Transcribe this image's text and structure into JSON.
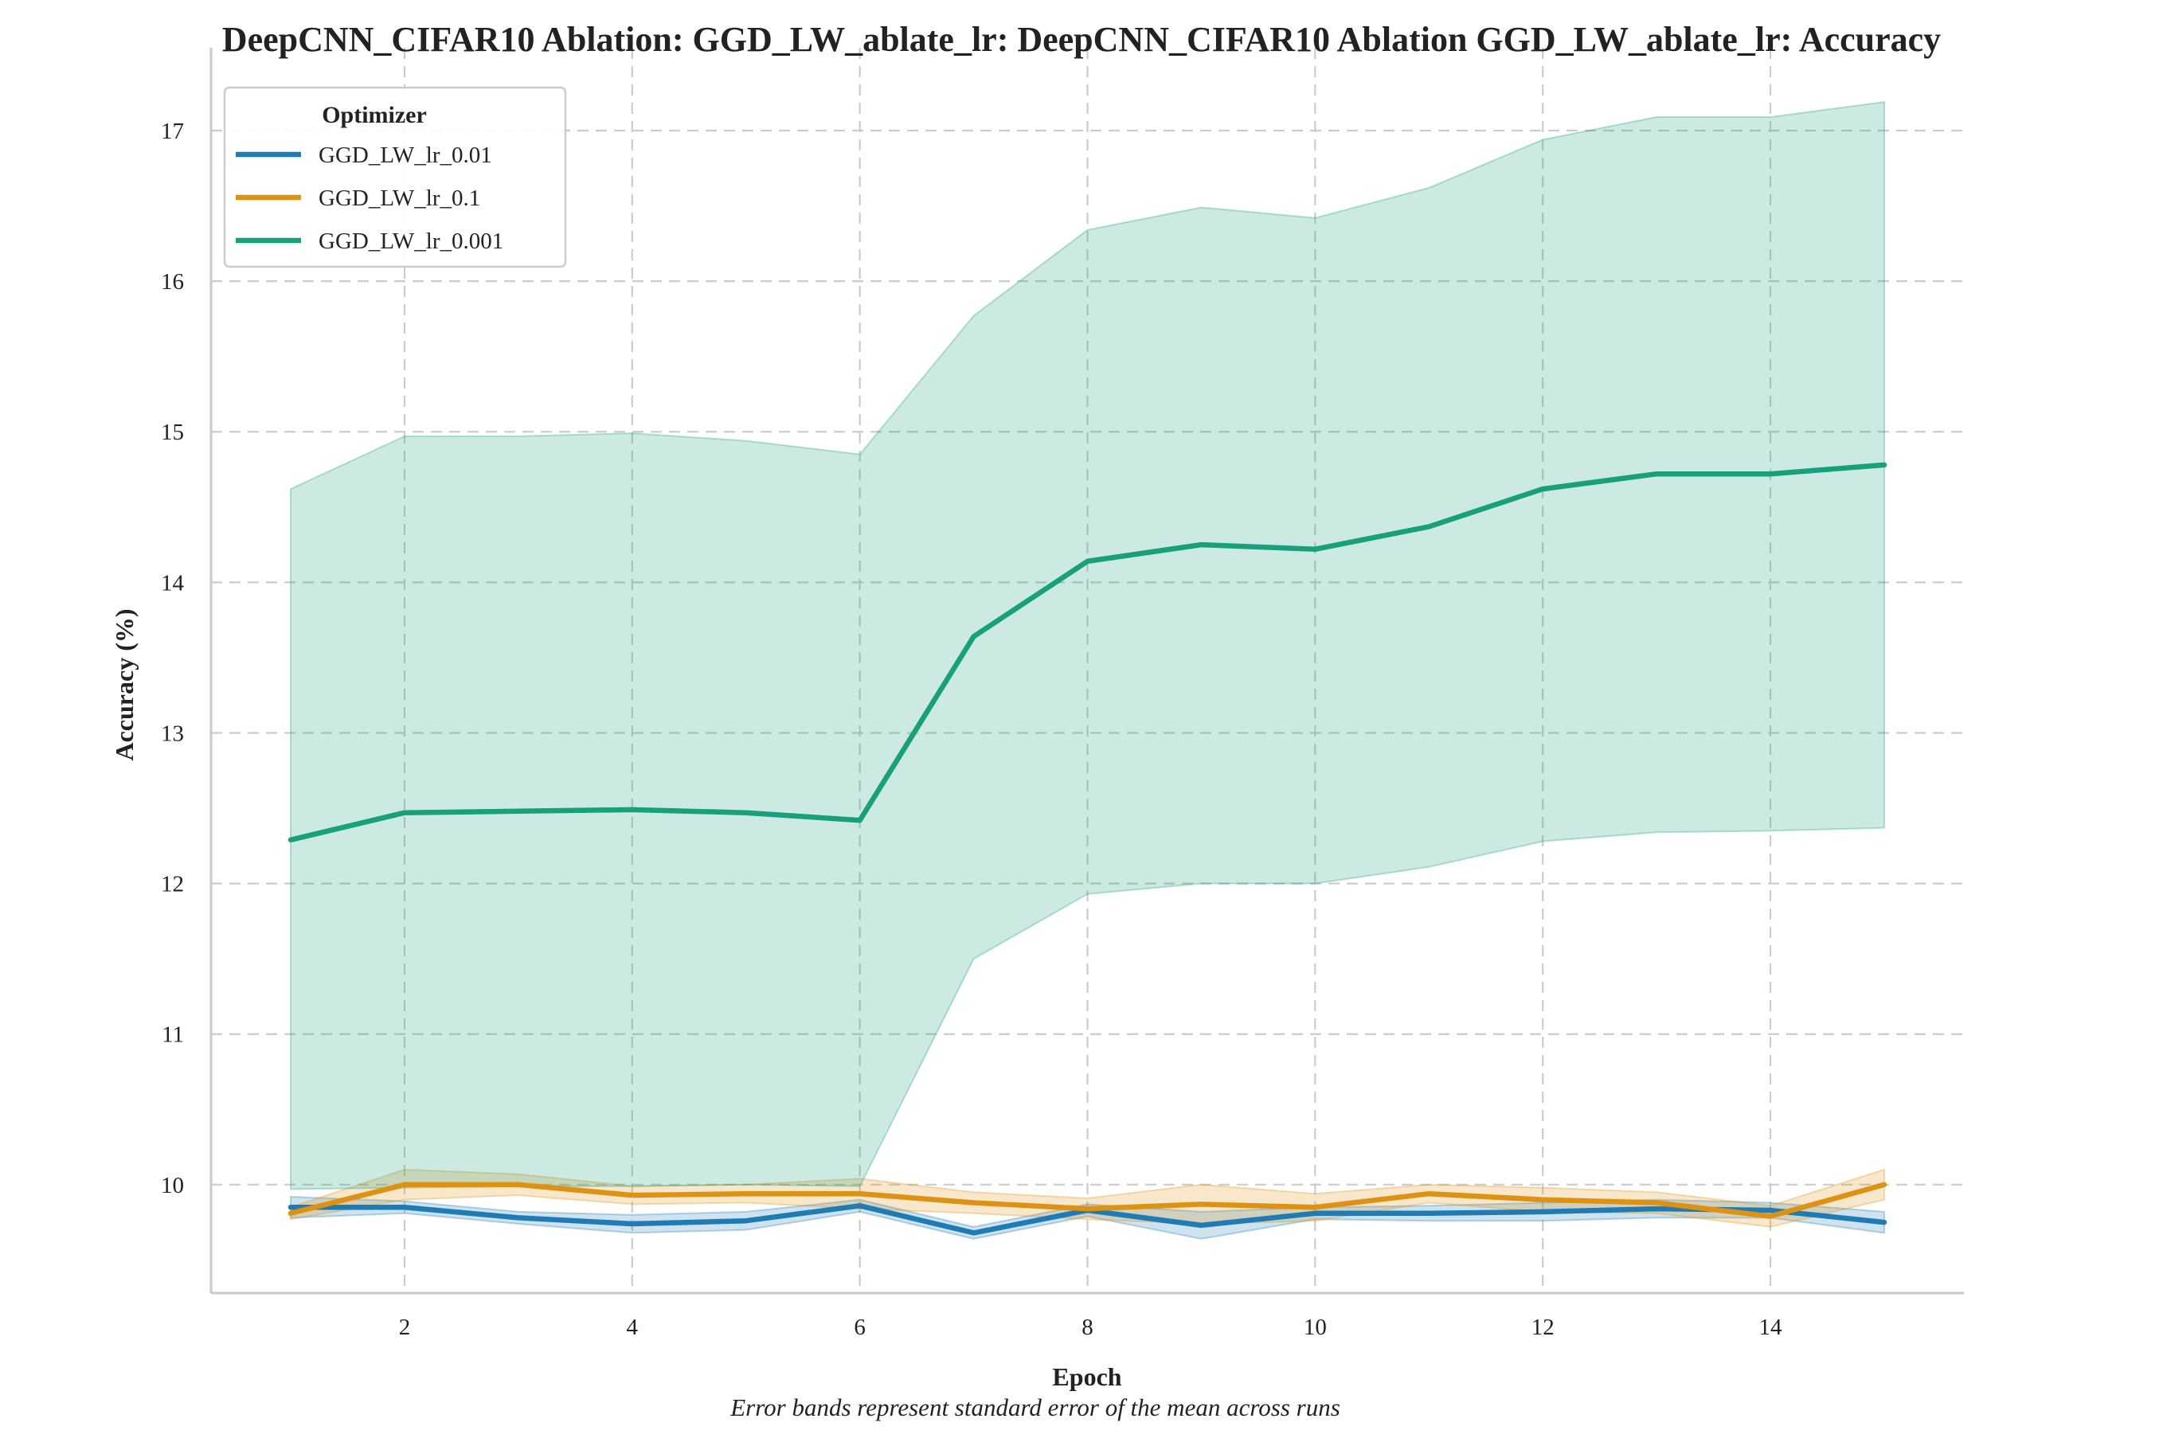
{
  "chart_data": {
    "type": "line",
    "title": "DeepCNN_CIFAR10 Ablation: GGD_LW_ablate_lr: DeepCNN_CIFAR10 Ablation GGD_LW_ablate_lr: Accuracy",
    "xlabel": "Epoch",
    "ylabel": "Accuracy (%)",
    "caption": "Error bands represent standard error of the mean across runs",
    "legend_title": "Optimizer",
    "legend_position": "top-left",
    "grid": true,
    "xlim": [
      0.3,
      15.7
    ],
    "ylim": [
      9.28,
      17.55
    ],
    "xticks": [
      2,
      4,
      6,
      8,
      10,
      12,
      14
    ],
    "yticks": [
      10,
      11,
      12,
      13,
      14,
      15,
      16,
      17
    ],
    "x": [
      1,
      2,
      3,
      4,
      5,
      6,
      7,
      8,
      9,
      10,
      11,
      12,
      13,
      14,
      15
    ],
    "series": [
      {
        "name": "GGD_LW_lr_0.01",
        "color": "#1f7bb4",
        "values": [
          9.85,
          9.85,
          9.78,
          9.74,
          9.76,
          9.86,
          9.68,
          9.83,
          9.73,
          9.81,
          9.81,
          9.82,
          9.84,
          9.83,
          9.75
        ],
        "lower": [
          9.78,
          9.81,
          9.74,
          9.68,
          9.7,
          9.82,
          9.64,
          9.79,
          9.64,
          9.77,
          9.76,
          9.76,
          9.78,
          9.78,
          9.68
        ],
        "upper": [
          9.92,
          9.89,
          9.82,
          9.8,
          9.82,
          9.9,
          9.72,
          9.87,
          9.82,
          9.85,
          9.86,
          9.88,
          9.9,
          9.88,
          9.82
        ]
      },
      {
        "name": "GGD_LW_lr_0.1",
        "color": "#de9214",
        "values": [
          9.81,
          10.0,
          10.0,
          9.93,
          9.94,
          9.94,
          9.88,
          9.84,
          9.87,
          9.85,
          9.94,
          9.9,
          9.88,
          9.79,
          10.0
        ],
        "lower": [
          9.77,
          9.9,
          9.93,
          9.87,
          9.88,
          9.84,
          9.81,
          9.77,
          9.74,
          9.76,
          9.88,
          9.82,
          9.81,
          9.72,
          9.9
        ],
        "upper": [
          9.85,
          10.1,
          10.07,
          9.99,
          10.0,
          10.04,
          9.95,
          9.91,
          10.0,
          9.94,
          10.0,
          9.98,
          9.95,
          9.86,
          10.1
        ]
      },
      {
        "name": "GGD_LW_lr_0.001",
        "color": "#17a07a",
        "values": [
          12.29,
          12.47,
          12.48,
          12.49,
          12.47,
          12.42,
          13.64,
          14.14,
          14.25,
          14.22,
          14.37,
          14.62,
          14.72,
          14.72,
          14.78
        ],
        "lower": [
          9.97,
          9.98,
          9.99,
          9.99,
          10.0,
          9.99,
          11.5,
          11.93,
          12.0,
          12.0,
          12.11,
          12.28,
          12.34,
          12.35,
          12.37
        ],
        "upper": [
          14.62,
          14.97,
          14.97,
          14.99,
          14.94,
          14.85,
          15.77,
          16.34,
          16.49,
          16.42,
          16.62,
          16.94,
          17.09,
          17.09,
          17.19
        ]
      }
    ]
  }
}
